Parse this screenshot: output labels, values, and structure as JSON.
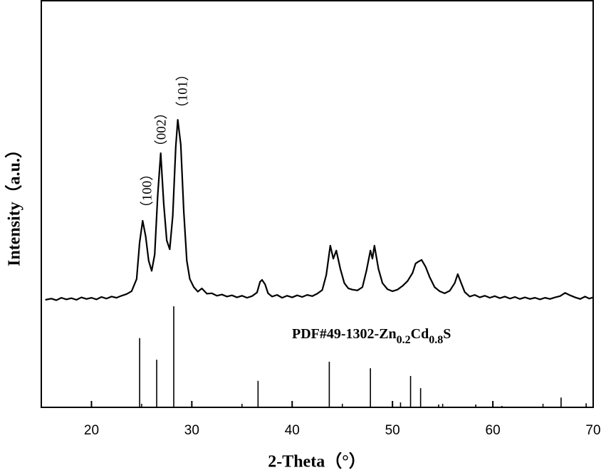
{
  "chart_data": {
    "type": "line",
    "x_label": "2-Theta（°）",
    "y_label": "Intensity（a.u.）",
    "xlim": [
      15,
      70
    ],
    "xticks": [
      20,
      30,
      40,
      50,
      60,
      70
    ],
    "ylim": [
      0,
      100
    ],
    "color": "#000000",
    "annotations": [
      "（100）",
      "（002）",
      "（101）"
    ],
    "x": [
      15.4,
      16,
      16.5,
      17,
      17.5,
      18,
      18.5,
      19,
      19.5,
      20,
      20.5,
      21,
      21.5,
      22,
      22.5,
      23,
      23.5,
      24,
      24.5,
      24.8,
      25.1,
      25.4,
      25.7,
      26.0,
      26.3,
      26.6,
      26.9,
      27.2,
      27.5,
      27.8,
      28.1,
      28.4,
      28.6,
      28.9,
      29.2,
      29.5,
      29.8,
      30.2,
      30.6,
      31,
      31.5,
      32,
      32.5,
      33,
      33.5,
      34,
      34.5,
      35,
      35.5,
      36,
      36.5,
      36.8,
      37.0,
      37.3,
      37.6,
      38,
      38.5,
      39,
      39.5,
      40,
      40.5,
      41,
      41.5,
      42,
      42.5,
      43,
      43.4,
      43.8,
      44.1,
      44.4,
      44.8,
      45.2,
      45.6,
      46,
      46.5,
      47,
      47.4,
      47.8,
      48.0,
      48.2,
      48.6,
      49,
      49.5,
      50,
      50.5,
      51,
      51.5,
      52,
      52.3,
      52.6,
      52.9,
      53.3,
      53.7,
      54.2,
      54.7,
      55.2,
      55.7,
      56.2,
      56.5,
      56.8,
      57.2,
      57.7,
      58.2,
      58.7,
      59.2,
      59.7,
      60.2,
      60.7,
      61.2,
      61.7,
      62.2,
      62.7,
      63.2,
      63.7,
      64.2,
      64.7,
      65.2,
      65.7,
      66.2,
      66.7,
      67.2,
      67.7,
      68.2,
      68.7,
      69.2,
      69.6,
      70
    ],
    "values": [
      26.4,
      26.7,
      26.3,
      26.9,
      26.5,
      26.8,
      26.4,
      27.0,
      26.6,
      26.9,
      26.5,
      27.1,
      26.7,
      27.2,
      26.9,
      27.4,
      27.8,
      28.5,
      31.5,
      40.5,
      45.8,
      42.0,
      36.0,
      33.5,
      37.5,
      52.0,
      62.4,
      50.0,
      41.0,
      38.8,
      47.0,
      64.0,
      70.6,
      64.5,
      48.0,
      36.0,
      31.5,
      29.5,
      28.4,
      29.2,
      27.9,
      28.0,
      27.4,
      27.7,
      27.2,
      27.5,
      27.0,
      27.4,
      26.9,
      27.3,
      28.2,
      30.8,
      31.3,
      30.2,
      28.0,
      27.2,
      27.6,
      26.9,
      27.4,
      27.0,
      27.5,
      27.1,
      27.6,
      27.3,
      27.9,
      28.8,
      32.5,
      39.7,
      36.5,
      38.5,
      34.0,
      30.5,
      29.2,
      28.9,
      28.7,
      29.5,
      33.5,
      38.5,
      36.5,
      39.7,
      34.0,
      30.5,
      29.0,
      28.5,
      28.9,
      29.8,
      31.0,
      33.0,
      35.3,
      35.8,
      36.2,
      34.5,
      32.0,
      29.5,
      28.5,
      28.0,
      28.6,
      30.5,
      32.7,
      30.8,
      28.3,
      27.2,
      27.6,
      27.0,
      27.4,
      26.9,
      27.3,
      26.8,
      27.2,
      26.7,
      27.1,
      26.6,
      27.0,
      26.6,
      26.9,
      26.5,
      26.9,
      26.6,
      27.0,
      27.3,
      28.1,
      27.5,
      27.0,
      26.6,
      27.2,
      26.7,
      27.0
    ],
    "reference": {
      "name_parts": [
        "PDF#49-1302-Zn",
        "0.2",
        "Cd",
        "0.8",
        "S"
      ],
      "x": [
        24.8,
        26.5,
        28.2,
        36.6,
        43.7,
        47.8,
        50.8,
        51.8,
        52.8,
        54.6,
        58.3,
        60.9,
        66.8,
        69.3
      ],
      "values": [
        17.0,
        11.7,
        24.8,
        6.5,
        11.2,
        9.6,
        1.2,
        7.7,
        4.7,
        0.7,
        0.7,
        0.35,
        2.4,
        1.0
      ]
    }
  }
}
